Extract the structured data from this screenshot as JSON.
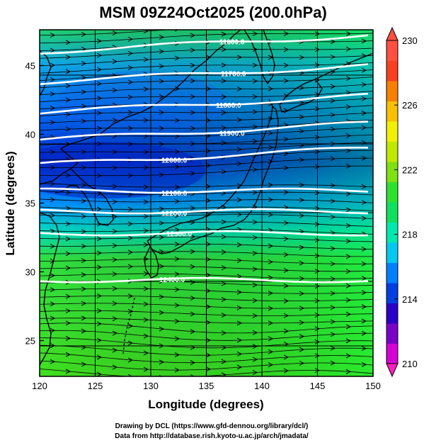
{
  "title": "MSM 09Z24Oct2025 (200.0hPa)",
  "xaxis": {
    "label": "Longitude (degrees)",
    "ticks": [
      "120",
      "125",
      "130",
      "135",
      "140",
      "145",
      "150"
    ],
    "range": [
      120,
      150
    ]
  },
  "yaxis": {
    "label": "Latitude  (degrees)",
    "ticks": [
      "25",
      "30",
      "35",
      "40",
      "45"
    ],
    "range": [
      22.4,
      47.6
    ]
  },
  "colorbar": {
    "ticks": [
      "230",
      "226",
      "222",
      "218",
      "214",
      "210"
    ],
    "range": [
      210,
      230
    ],
    "colors": [
      "#d400d4",
      "#7a00c8",
      "#2a00c8",
      "#0040e0",
      "#0080ff",
      "#00c8f0",
      "#00e8b0",
      "#10e060",
      "#30e030",
      "#80e010",
      "#c0e800",
      "#f0f000",
      "#f8c000",
      "#f88000",
      "#f84020",
      "#ff5040"
    ]
  },
  "contours": [
    {
      "label": "11600.0",
      "lat": 46.0
    },
    {
      "label": "11700.0",
      "lat": 43.8
    },
    {
      "label": "11800.0",
      "lat": 41.6
    },
    {
      "label": "11900.0",
      "lat": 39.6
    },
    {
      "label": "12000.0",
      "lat": 37.8
    },
    {
      "label": "12100.0",
      "lat": 35.9
    },
    {
      "label": "12200.0",
      "lat": 34.4
    },
    {
      "label": "12300.0",
      "lat": 32.8
    },
    {
      "label": "12400.0",
      "lat": 29.4
    }
  ],
  "credits": {
    "line1": "Drawing by DCL (https://www.gfd-dennou.org/library/dcl/)",
    "line2": "Data from http://database.rish.kyoto-u.ac.jp/arch/jmadata/"
  }
}
